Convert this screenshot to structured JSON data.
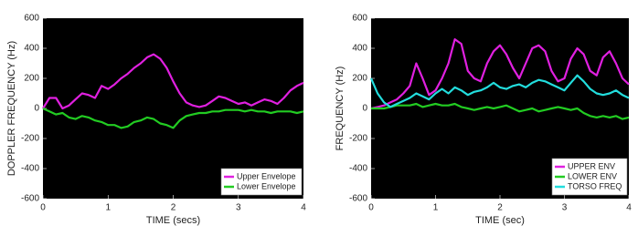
{
  "chart_data": [
    {
      "type": "line",
      "xlabel": "TIME (secs)",
      "ylabel": "DOPPLER FREQUENCY (Hz)",
      "x": [
        0,
        0.1,
        0.2,
        0.3,
        0.4,
        0.5,
        0.6,
        0.7,
        0.8,
        0.9,
        1,
        1.1,
        1.2,
        1.3,
        1.4,
        1.5,
        1.6,
        1.7,
        1.8,
        1.9,
        2,
        2.1,
        2.2,
        2.3,
        2.4,
        2.5,
        2.6,
        2.7,
        2.8,
        2.9,
        3,
        3.1,
        3.2,
        3.3,
        3.4,
        3.5,
        3.6,
        3.7,
        3.8,
        3.9,
        4
      ],
      "xlim": [
        0,
        4
      ],
      "xticks": [
        0,
        1,
        2,
        3,
        4
      ],
      "ylim": [
        -600,
        600
      ],
      "yticks": [
        -600,
        -400,
        -200,
        0,
        200,
        400,
        600
      ],
      "legend": "lower right",
      "series": [
        {
          "name": "Upper Envelope",
          "color": "#e020e0",
          "values": [
            0,
            70,
            70,
            0,
            20,
            60,
            100,
            90,
            70,
            150,
            130,
            160,
            200,
            230,
            270,
            300,
            340,
            360,
            330,
            270,
            180,
            100,
            40,
            20,
            10,
            20,
            50,
            80,
            70,
            50,
            30,
            40,
            20,
            40,
            60,
            50,
            30,
            70,
            120,
            150,
            170
          ]
        },
        {
          "name": "Lower Envelope",
          "color": "#22cc22",
          "values": [
            0,
            -20,
            -40,
            -30,
            -60,
            -70,
            -50,
            -60,
            -80,
            -90,
            -110,
            -110,
            -130,
            -120,
            -90,
            -80,
            -60,
            -70,
            -100,
            -110,
            -130,
            -80,
            -50,
            -40,
            -30,
            -30,
            -20,
            -20,
            -10,
            -10,
            -10,
            -20,
            -10,
            -20,
            -20,
            -30,
            -20,
            -20,
            -20,
            -30,
            -20
          ]
        }
      ]
    },
    {
      "type": "line",
      "xlabel": "TIME (sec)",
      "ylabel": "FREQUENCY (Hz)",
      "x": [
        0,
        0.1,
        0.2,
        0.3,
        0.4,
        0.5,
        0.6,
        0.7,
        0.8,
        0.9,
        1,
        1.1,
        1.2,
        1.3,
        1.4,
        1.5,
        1.6,
        1.7,
        1.8,
        1.9,
        2,
        2.1,
        2.2,
        2.3,
        2.4,
        2.5,
        2.6,
        2.7,
        2.8,
        2.9,
        3,
        3.1,
        3.2,
        3.3,
        3.4,
        3.5,
        3.6,
        3.7,
        3.8,
        3.9,
        4
      ],
      "xlim": [
        0,
        4
      ],
      "xticks": [
        0,
        1,
        2,
        3,
        4
      ],
      "ylim": [
        -600,
        600
      ],
      "yticks": [
        -600,
        -400,
        -200,
        0,
        200,
        400,
        600
      ],
      "legend": "lower right",
      "series": [
        {
          "name": "UPPER ENV",
          "color": "#e020e0",
          "values": [
            0,
            10,
            20,
            40,
            60,
            100,
            150,
            300,
            200,
            90,
            120,
            200,
            300,
            460,
            430,
            250,
            200,
            180,
            300,
            380,
            420,
            360,
            270,
            200,
            300,
            400,
            420,
            380,
            250,
            180,
            200,
            330,
            400,
            360,
            250,
            220,
            340,
            380,
            300,
            200,
            160
          ]
        },
        {
          "name": "LOWER ENV",
          "color": "#22cc22",
          "values": [
            0,
            0,
            0,
            10,
            20,
            20,
            20,
            30,
            10,
            20,
            30,
            20,
            20,
            30,
            10,
            0,
            -10,
            0,
            10,
            0,
            10,
            20,
            0,
            -20,
            -10,
            0,
            -20,
            -10,
            0,
            10,
            0,
            -10,
            0,
            -30,
            -50,
            -60,
            -50,
            -60,
            -50,
            -70,
            -60
          ]
        },
        {
          "name": "TORSO FREQ",
          "color": "#22dddd",
          "values": [
            200,
            100,
            40,
            10,
            30,
            50,
            70,
            100,
            80,
            60,
            100,
            130,
            100,
            140,
            120,
            90,
            110,
            120,
            140,
            170,
            140,
            130,
            150,
            160,
            140,
            170,
            190,
            180,
            160,
            140,
            120,
            170,
            220,
            180,
            130,
            100,
            90,
            100,
            120,
            90,
            70
          ]
        }
      ]
    }
  ]
}
